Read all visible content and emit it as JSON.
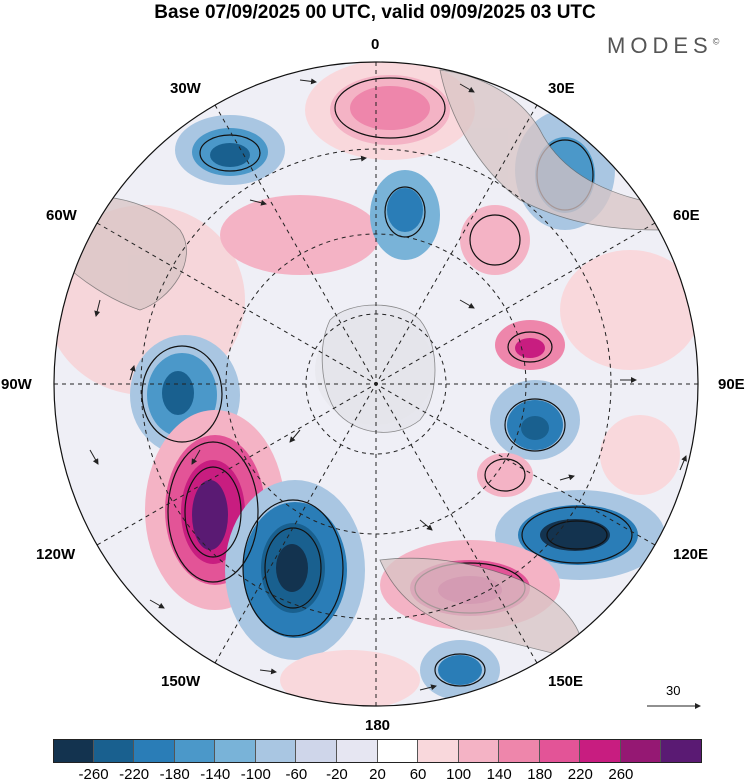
{
  "header": {
    "title": "Base 07/09/2025 00 UTC, valid 09/09/2025 03 UTC",
    "brand": "MODES",
    "brand_mark": "©"
  },
  "map": {
    "projection": "south polar stereographic",
    "labels": {
      "top": "0",
      "bottom": "180",
      "left": "90W",
      "right": "90E",
      "upper_left_1": "30W",
      "upper_left_2": "60W",
      "upper_right_1": "30E",
      "upper_right_2": "60E",
      "lower_left_1": "120W",
      "lower_left_2": "150W",
      "lower_right_1": "120E",
      "lower_right_2": "150E"
    },
    "reference_vector": "30"
  },
  "colorbar": {
    "ticks": [
      "-260",
      "-220",
      "-180",
      "-140",
      "-100",
      "-60",
      "-20",
      "20",
      "60",
      "100",
      "140",
      "180",
      "220",
      "260"
    ],
    "colors": [
      "#13334f",
      "#19608f",
      "#2a7db7",
      "#4b98c9",
      "#79b3d8",
      "#a9c6e2",
      "#cfd6ea",
      "#e6e6f2",
      "#ffffff",
      "#f9d8dc",
      "#f4b3c5",
      "#ee86ab",
      "#e35497",
      "#c81d80",
      "#951873",
      "#5a1a73"
    ]
  }
}
